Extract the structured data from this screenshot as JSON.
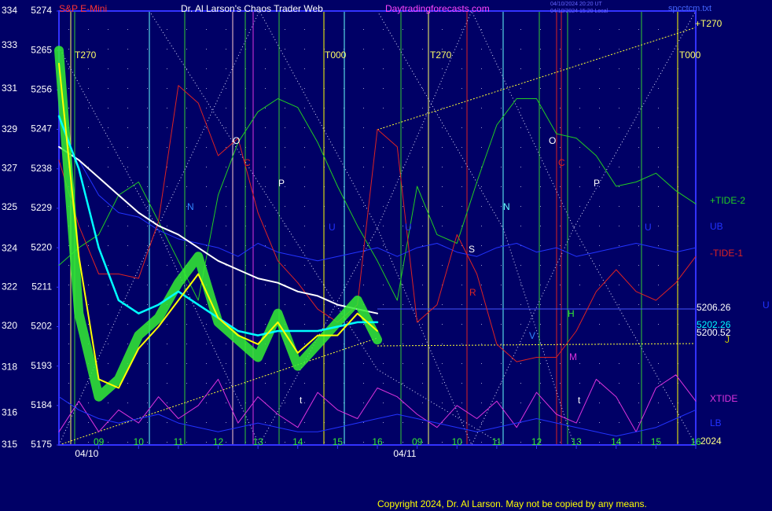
{
  "chart_data": {
    "type": "line",
    "instrument": "S&P E-Mini",
    "title": "Dr. Al Larson's Chaos Trader Web",
    "site": "Daytradingforecasts.com",
    "stamps": [
      "04/10/2024 20:20 UT",
      "04/10/2024 15:20 Local"
    ],
    "file": "spcctcm.txt",
    "copyright": "Copyright 2024, Dr. Al Larson. May not be copied by any means.",
    "year": "2024",
    "x": [
      0,
      0.5,
      1,
      1.5,
      2,
      2.5,
      3,
      3.5,
      4,
      4.5,
      5,
      5.5,
      6,
      6.5,
      7,
      7.5,
      8,
      8.5,
      9,
      9.5,
      10,
      10.5,
      11,
      11.5,
      12,
      12.5,
      13,
      13.5,
      14,
      14.5,
      15,
      15.5,
      16
    ],
    "xlim": [
      0,
      16
    ],
    "xticks": [
      {
        "value": 1,
        "label": "09"
      },
      {
        "value": 2,
        "label": "10"
      },
      {
        "value": 3,
        "label": "11"
      },
      {
        "value": 4,
        "label": "12"
      },
      {
        "value": 5,
        "label": "13"
      },
      {
        "value": 6,
        "label": "14"
      },
      {
        "value": 7,
        "label": "15"
      },
      {
        "value": 8,
        "label": "16"
      },
      {
        "value": 9,
        "label": "09"
      },
      {
        "value": 10,
        "label": "10"
      },
      {
        "value": 11,
        "label": "11"
      },
      {
        "value": 12,
        "label": "12"
      },
      {
        "value": 13,
        "label": "13"
      },
      {
        "value": 14,
        "label": "14"
      },
      {
        "value": 15,
        "label": "15"
      },
      {
        "value": 16,
        "label": "16"
      }
    ],
    "date_labels": [
      {
        "value": 0.5,
        "label": "04/10"
      },
      {
        "value": 8.5,
        "label": "04/11"
      }
    ],
    "ylim": [
      5175,
      5274
    ],
    "yticks": [
      5175,
      5184,
      5193,
      5202,
      5211,
      5220,
      5229,
      5238,
      5247,
      5256,
      5265,
      5274
    ],
    "y2lim": [
      315,
      334
    ],
    "y2ticks": [
      315,
      {
        "value": 316.4,
        "label": "316"
      },
      {
        "value": 318.4,
        "label": "318"
      },
      {
        "value": 320.2,
        "label": "320"
      },
      {
        "value": 321.9,
        "label": "322"
      },
      {
        "value": 323.6,
        "label": "324"
      },
      {
        "value": 325.4,
        "label": "325"
      },
      {
        "value": 327.1,
        "label": "327"
      },
      {
        "value": 328.8,
        "label": "329"
      },
      {
        "value": 330.6,
        "label": "331"
      },
      {
        "value": 332.5,
        "label": "333"
      },
      334
    ],
    "price_labels": [
      {
        "value": 5206.26,
        "color": "#ffffff"
      },
      {
        "value": 5202.26,
        "color": "#00ffff"
      },
      {
        "value": 5200.52,
        "color": "#ffffff"
      }
    ],
    "annotations": [
      "T270",
      "T000",
      "T270",
      "T000",
      "+T270",
      "O",
      "C",
      "P",
      "N",
      "U",
      "U",
      "S",
      "R",
      "N",
      "O",
      "C",
      "P",
      "U",
      "H",
      "M",
      "V",
      "t",
      "t",
      "J",
      "U"
    ],
    "series": [
      {
        "name": "+TIDE-2",
        "color": "#22cc22",
        "values": [
          5216,
          5220,
          5223,
          5232,
          5235,
          5226,
          5217,
          5208,
          5232,
          5244,
          5251,
          5254,
          5252,
          5244,
          5234,
          5225,
          5217,
          5208,
          5234,
          5223,
          5221,
          5235,
          5248,
          5254,
          5254,
          5246,
          5245,
          5241,
          5234,
          5235,
          5237,
          5233,
          5230
        ]
      },
      {
        "name": "UB",
        "color": "#2233ff",
        "values": [
          5243,
          5240,
          5232,
          5228,
          5227,
          5224,
          5222,
          5221,
          5220,
          5218,
          5221,
          5219,
          5218,
          5217,
          5218,
          5219,
          5220,
          5218,
          5220,
          5221,
          5219,
          5218,
          5220,
          5221,
          5219,
          5220,
          5218,
          5219,
          5220,
          5221,
          5220,
          5219,
          5220
        ]
      },
      {
        "name": "-TIDE-1",
        "color": "#dd2222",
        "values": [
          5240,
          5225,
          5214,
          5214,
          5213,
          5226,
          5257,
          5253,
          5241,
          5245,
          5228,
          5217,
          5212,
          5206,
          5203,
          5207,
          5247,
          5243,
          5203,
          5207,
          5223,
          5214,
          5198,
          5194,
          5195,
          5195,
          5201,
          5210,
          5215,
          5210,
          5208,
          5212,
          5218
        ]
      },
      {
        "name": "XTIDE",
        "color": "#dd33dd",
        "values": [
          5178,
          5185,
          5178,
          5183,
          5180,
          5186,
          5181,
          5184,
          5190,
          5180,
          5186,
          5182,
          5179,
          5187,
          5183,
          5181,
          5188,
          5186,
          5182,
          5179,
          5184,
          5181,
          5185,
          5179,
          5187,
          5182,
          5180,
          5190,
          5186,
          5178,
          5188,
          5191,
          5185
        ]
      },
      {
        "name": "LB",
        "color": "#2233ff",
        "values": [
          5186,
          5183,
          5181,
          5180,
          5181,
          5182,
          5180,
          5179,
          5178,
          5179,
          5180,
          5179,
          5178,
          5178,
          5179,
          5180,
          5181,
          5182,
          5181,
          5180,
          5179,
          5178,
          5179,
          5180,
          5181,
          5180,
          5179,
          5178,
          5177,
          5178,
          5179,
          5181,
          5183
        ]
      },
      {
        "color": "#ffffff",
        "values": [
          5243,
          5240,
          5236,
          5232,
          5228,
          5225,
          5223,
          5220,
          5217,
          5215,
          5213,
          5212,
          5210,
          5209,
          5207,
          5206,
          5205,
          null,
          null,
          null,
          null,
          null,
          null,
          null,
          null,
          null,
          null,
          null,
          null,
          null,
          null,
          null,
          null
        ]
      },
      {
        "color": "#33ee33",
        "values": [
          5265,
          5205,
          5186,
          5190,
          5200,
          5204,
          5212,
          5218,
          5203,
          5199,
          5195,
          5205,
          5193,
          5198,
          5203,
          5208,
          5199,
          null,
          null,
          null,
          null,
          null,
          null,
          null,
          null,
          null,
          null,
          null,
          null,
          null,
          null,
          null,
          null
        ]
      },
      {
        "color": "#00ffff",
        "values": [
          5250,
          5238,
          5220,
          5208,
          5205,
          5207,
          5210,
          5207,
          5204,
          5201,
          5200,
          5201,
          5201,
          5201,
          5202,
          5203,
          5203,
          null,
          null,
          null,
          null,
          null,
          null,
          null,
          null,
          null,
          null,
          null,
          null,
          null,
          null,
          null,
          null
        ]
      },
      {
        "color": "#ffff00",
        "values": [
          5262,
          5218,
          5190,
          5188,
          5197,
          5202,
          5208,
          5214,
          5204,
          5200,
          5198,
          5203,
          5196,
          5200,
          5200,
          5205,
          5201,
          null,
          null,
          null,
          null,
          null,
          null,
          null,
          null,
          null,
          null,
          null,
          null,
          null,
          null,
          null,
          null
        ]
      }
    ]
  }
}
